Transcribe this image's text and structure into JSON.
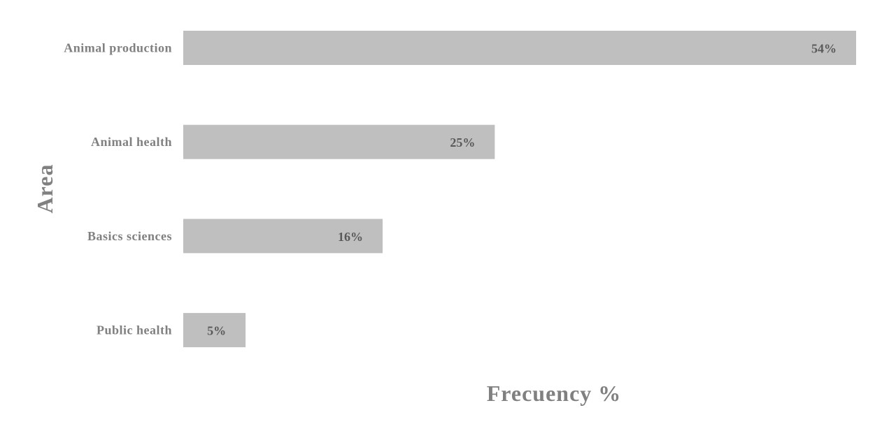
{
  "chart_data": {
    "type": "bar",
    "orientation": "horizontal",
    "categories": [
      "Animal production",
      "Animal health",
      "Basics sciences",
      "Public health"
    ],
    "values": [
      54,
      25,
      16,
      5
    ],
    "value_labels": [
      "54%",
      "25%",
      "16%",
      "5%"
    ],
    "xlabel": "Frecuency %",
    "ylabel": "Area",
    "xlim": [
      0,
      54
    ],
    "grid": false,
    "legend": "none",
    "bar_color": "#bfbfbf"
  }
}
